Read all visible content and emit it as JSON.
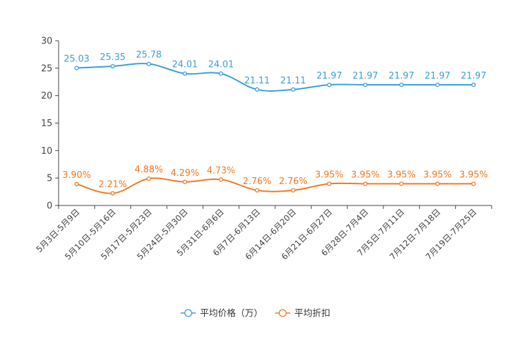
{
  "chart_data": {
    "type": "line",
    "title": "",
    "xlabel": "",
    "ylabel": "",
    "ylim": [
      0,
      30
    ],
    "yticks": [
      0,
      5,
      10,
      15,
      20,
      25,
      30
    ],
    "grid": false,
    "legend_position": "bottom-center",
    "categories": [
      "5月3日-5月9日",
      "5月10日-5月16日",
      "5月17日-5月23日",
      "5月24日-5月30日",
      "5月31日-6月6日",
      "6月7日-6月13日",
      "6月14日-6月20日",
      "6月21日-6月27日",
      "6月28日-7月4日",
      "7月5日-7月11日",
      "7月12日-7月18日",
      "7月19日-7月25日"
    ],
    "series": [
      {
        "name": "平均价格（万）",
        "color": "#3a9fd6",
        "values": [
          25.03,
          25.35,
          25.78,
          24.01,
          24.01,
          21.11,
          21.11,
          21.97,
          21.97,
          21.97,
          21.97,
          21.97
        ],
        "labels": [
          "25.03",
          "25.35",
          "25.78",
          "24.01",
          "24.01",
          "21.11",
          "21.11",
          "21.97",
          "21.97",
          "21.97",
          "21.97",
          "21.97"
        ]
      },
      {
        "name": "平均折扣",
        "color": "#f07820",
        "values": [
          3.9,
          2.21,
          4.88,
          4.29,
          4.73,
          2.76,
          2.76,
          3.95,
          3.95,
          3.95,
          3.95,
          3.95
        ],
        "labels": [
          "3.90%",
          "2.21%",
          "4.88%",
          "4.29%",
          "4.73%",
          "2.76%",
          "2.76%",
          "3.95%",
          "3.95%",
          "3.95%",
          "3.95%",
          "3.95%"
        ]
      }
    ]
  }
}
